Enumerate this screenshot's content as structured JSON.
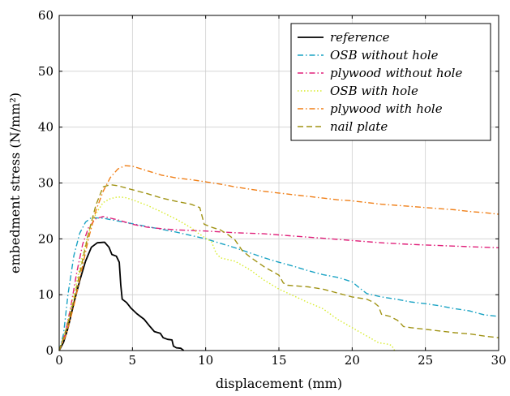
{
  "chart_data": {
    "type": "line",
    "xlabel": "displacement (mm)",
    "ylabel": "embedment stress (N/mm²)",
    "xlim": [
      0,
      30
    ],
    "ylim": [
      0,
      60
    ],
    "xticks": [
      0,
      5,
      10,
      15,
      20,
      25,
      30
    ],
    "yticks": [
      0,
      10,
      20,
      30,
      40,
      50,
      60
    ],
    "grid": true,
    "legend_position": "top-right",
    "series": [
      {
        "name": "reference",
        "color": "#000000",
        "dash": "solid",
        "points": [
          [
            0,
            0
          ],
          [
            0.3,
            1.5
          ],
          [
            0.6,
            4
          ],
          [
            1,
            8.5
          ],
          [
            1.4,
            12.5
          ],
          [
            1.8,
            16
          ],
          [
            2.2,
            18.5
          ],
          [
            2.6,
            19.3
          ],
          [
            3.1,
            19.4
          ],
          [
            3.4,
            18.5
          ],
          [
            3.6,
            17.2
          ],
          [
            3.9,
            16.9
          ],
          [
            4.1,
            15.8
          ],
          [
            4.2,
            11.8
          ],
          [
            4.3,
            9.2
          ],
          [
            4.6,
            8.6
          ],
          [
            4.9,
            7.6
          ],
          [
            5.3,
            6.6
          ],
          [
            5.8,
            5.6
          ],
          [
            6.2,
            4.3
          ],
          [
            6.5,
            3.4
          ],
          [
            6.9,
            3.1
          ],
          [
            7.1,
            2.3
          ],
          [
            7.4,
            2.0
          ],
          [
            7.7,
            1.9
          ],
          [
            7.8,
            0.8
          ],
          [
            8,
            0.5
          ],
          [
            8.3,
            0.4
          ],
          [
            8.5,
            0
          ]
        ]
      },
      {
        "name": "OSB without hole",
        "color": "#1aa3c4",
        "dash": "dashdot",
        "points": [
          [
            0,
            0
          ],
          [
            0.3,
            3
          ],
          [
            0.6,
            10
          ],
          [
            1,
            17
          ],
          [
            1.4,
            21
          ],
          [
            1.8,
            23
          ],
          [
            2.2,
            23.8
          ],
          [
            3,
            23.7
          ],
          [
            4,
            23.2
          ],
          [
            5,
            22.7
          ],
          [
            6,
            22.2
          ],
          [
            7,
            21.7
          ],
          [
            8,
            21.2
          ],
          [
            9,
            20.6
          ],
          [
            10,
            20
          ],
          [
            11,
            19.2
          ],
          [
            12,
            18.4
          ],
          [
            13,
            17.5
          ],
          [
            14,
            16.6
          ],
          [
            15,
            15.8
          ],
          [
            16,
            15.1
          ],
          [
            17,
            14.3
          ],
          [
            18,
            13.6
          ],
          [
            19,
            13.1
          ],
          [
            20,
            12.3
          ],
          [
            20.5,
            11.2
          ],
          [
            21,
            10.2
          ],
          [
            22,
            9.6
          ],
          [
            23,
            9.2
          ],
          [
            24,
            8.7
          ],
          [
            25,
            8.4
          ],
          [
            26,
            8.0
          ],
          [
            27,
            7.5
          ],
          [
            28,
            7.1
          ],
          [
            29,
            6.4
          ],
          [
            30,
            6.1
          ]
        ]
      },
      {
        "name": "plywood without hole",
        "color": "#e0207a",
        "dash": "dashdot",
        "points": [
          [
            0,
            0
          ],
          [
            0.4,
            3
          ],
          [
            0.8,
            8
          ],
          [
            1.2,
            14
          ],
          [
            1.6,
            19
          ],
          [
            2,
            22
          ],
          [
            2.5,
            23.6
          ],
          [
            3,
            24
          ],
          [
            4,
            23.4
          ],
          [
            5,
            22.6
          ],
          [
            6,
            22.1
          ],
          [
            7,
            21.8
          ],
          [
            8,
            21.6
          ],
          [
            10,
            21.4
          ],
          [
            12,
            21.1
          ],
          [
            14,
            20.9
          ],
          [
            16,
            20.5
          ],
          [
            18,
            20.1
          ],
          [
            20,
            19.7
          ],
          [
            22,
            19.3
          ],
          [
            24,
            19
          ],
          [
            26,
            18.8
          ],
          [
            28,
            18.6
          ],
          [
            30,
            18.4
          ]
        ]
      },
      {
        "name": "OSB with hole",
        "color": "#d7ec2a",
        "dash": "dotted",
        "points": [
          [
            0,
            0
          ],
          [
            0.5,
            4
          ],
          [
            1,
            10
          ],
          [
            1.5,
            16
          ],
          [
            2,
            21
          ],
          [
            2.5,
            24.5
          ],
          [
            3,
            26.5
          ],
          [
            3.5,
            27.2
          ],
          [
            4,
            27.5
          ],
          [
            4.5,
            27.4
          ],
          [
            5,
            27
          ],
          [
            6,
            26
          ],
          [
            7,
            24.8
          ],
          [
            8,
            23.5
          ],
          [
            9,
            22
          ],
          [
            9.5,
            21
          ],
          [
            10,
            20.1
          ],
          [
            10.4,
            19.5
          ],
          [
            10.7,
            17.5
          ],
          [
            11,
            16.6
          ],
          [
            12,
            16
          ],
          [
            13,
            14.5
          ],
          [
            14,
            12.6
          ],
          [
            15,
            11
          ],
          [
            16,
            9.8
          ],
          [
            17,
            8.6
          ],
          [
            18,
            7.5
          ],
          [
            19,
            5.6
          ],
          [
            20,
            4.1
          ],
          [
            21,
            2.6
          ],
          [
            21.8,
            1.4
          ],
          [
            22.5,
            1.1
          ],
          [
            22.7,
            0.9
          ],
          [
            22.9,
            0
          ]
        ]
      },
      {
        "name": "plywood with hole",
        "color": "#f07f17",
        "dash": "dashdot",
        "points": [
          [
            0,
            0
          ],
          [
            0.5,
            3
          ],
          [
            1,
            8
          ],
          [
            1.5,
            14
          ],
          [
            2,
            20
          ],
          [
            2.5,
            25
          ],
          [
            3,
            28.5
          ],
          [
            3.5,
            31
          ],
          [
            4,
            32.5
          ],
          [
            4.5,
            33.1
          ],
          [
            5,
            33
          ],
          [
            6,
            32.2
          ],
          [
            7,
            31.4
          ],
          [
            8,
            30.9
          ],
          [
            9,
            30.6
          ],
          [
            10,
            30.2
          ],
          [
            11,
            29.8
          ],
          [
            12,
            29.3
          ],
          [
            13,
            28.9
          ],
          [
            14,
            28.5
          ],
          [
            15,
            28.2
          ],
          [
            16,
            27.9
          ],
          [
            17,
            27.6
          ],
          [
            18,
            27.3
          ],
          [
            19,
            27
          ],
          [
            20,
            26.8
          ],
          [
            21,
            26.5
          ],
          [
            22,
            26.2
          ],
          [
            23,
            26
          ],
          [
            24,
            25.8
          ],
          [
            25,
            25.6
          ],
          [
            26,
            25.4
          ],
          [
            27,
            25.2
          ],
          [
            28,
            24.9
          ],
          [
            29,
            24.7
          ],
          [
            30,
            24.4
          ]
        ]
      },
      {
        "name": "nail plate",
        "color": "#a09314",
        "dash": "dashed",
        "points": [
          [
            0,
            0
          ],
          [
            0.5,
            4
          ],
          [
            1,
            9
          ],
          [
            1.5,
            15
          ],
          [
            2,
            21
          ],
          [
            2.5,
            26
          ],
          [
            3,
            29.3
          ],
          [
            3.5,
            29.7
          ],
          [
            4,
            29.5
          ],
          [
            5,
            28.8
          ],
          [
            6,
            28.1
          ],
          [
            7,
            27.3
          ],
          [
            8,
            26.7
          ],
          [
            9,
            26.2
          ],
          [
            9.6,
            25.6
          ],
          [
            9.9,
            22.6
          ],
          [
            10.5,
            22
          ],
          [
            11,
            21.6
          ],
          [
            11.5,
            20.8
          ],
          [
            12,
            19.8
          ],
          [
            12.5,
            17.9
          ],
          [
            13,
            16.8
          ],
          [
            14,
            15
          ],
          [
            15,
            13.5
          ],
          [
            15.3,
            12.1
          ],
          [
            15.6,
            11.7
          ],
          [
            16.5,
            11.5
          ],
          [
            17,
            11.4
          ],
          [
            18,
            11
          ],
          [
            19,
            10.3
          ],
          [
            20,
            9.6
          ],
          [
            21,
            9.2
          ],
          [
            21.5,
            8.6
          ],
          [
            21.8,
            7.9
          ],
          [
            22,
            6.5
          ],
          [
            22.6,
            6.1
          ],
          [
            23.1,
            5.4
          ],
          [
            23.3,
            4.9
          ],
          [
            23.5,
            4.3
          ],
          [
            24,
            4.1
          ],
          [
            25,
            3.8
          ],
          [
            26,
            3.5
          ],
          [
            27,
            3.2
          ],
          [
            28,
            3.0
          ],
          [
            29,
            2.6
          ],
          [
            30,
            2.3
          ]
        ]
      }
    ]
  }
}
